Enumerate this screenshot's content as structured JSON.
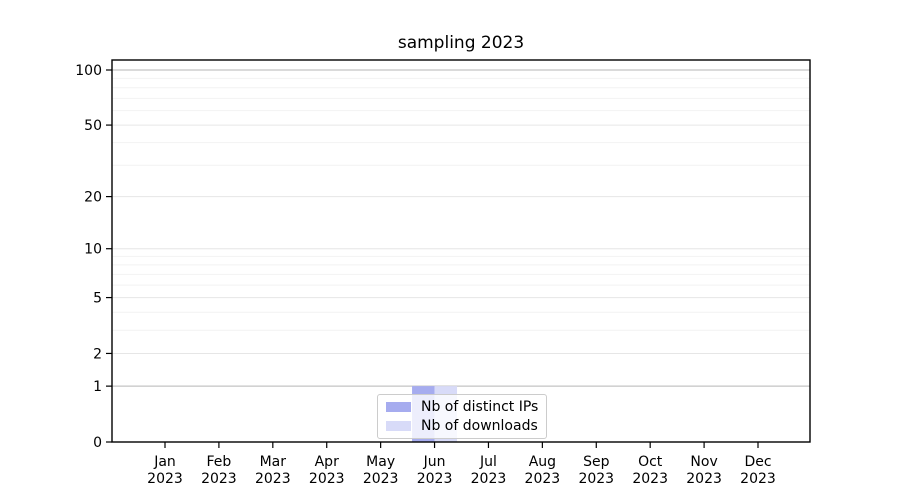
{
  "title": "sampling 2023",
  "colors": {
    "grid_minor": "#f2f2f2",
    "grid_major": "#e6e6e6",
    "grid_emphasis": "#c4c4c4",
    "spine": "#000000",
    "tick": "#000000",
    "text": "#000000",
    "legend_border": "#cccccc",
    "legend_bg": "rgba(255,255,255,0.8)"
  },
  "chart_data": {
    "type": "bar",
    "title": "sampling 2023",
    "xlabel": "",
    "ylabel": "",
    "grid": true,
    "legend_position": "lower center",
    "categories": [
      {
        "month": "Jan",
        "year": "2023"
      },
      {
        "month": "Feb",
        "year": "2023"
      },
      {
        "month": "Mar",
        "year": "2023"
      },
      {
        "month": "Apr",
        "year": "2023"
      },
      {
        "month": "May",
        "year": "2023"
      },
      {
        "month": "Jun",
        "year": "2023"
      },
      {
        "month": "Jul",
        "year": "2023"
      },
      {
        "month": "Aug",
        "year": "2023"
      },
      {
        "month": "Sep",
        "year": "2023"
      },
      {
        "month": "Oct",
        "year": "2023"
      },
      {
        "month": "Nov",
        "year": "2023"
      },
      {
        "month": "Dec",
        "year": "2023"
      }
    ],
    "series": [
      {
        "name": "Nb of distinct IPs",
        "color": "#a6acef",
        "values": [
          0,
          0,
          0,
          0,
          0,
          1,
          0,
          0,
          0,
          0,
          0,
          0
        ]
      },
      {
        "name": "Nb of downloads",
        "color": "#d8dbf8",
        "values": [
          0,
          0,
          0,
          0,
          0,
          1,
          0,
          0,
          0,
          0,
          0,
          0
        ]
      }
    ],
    "y_axis": {
      "scale": "log1p",
      "range": [
        0,
        113
      ],
      "ticks": [
        {
          "value": 100,
          "label": "100"
        },
        {
          "value": 50,
          "label": "50"
        },
        {
          "value": 20,
          "label": "20"
        },
        {
          "value": 10,
          "label": "10"
        },
        {
          "value": 5,
          "label": "5"
        },
        {
          "value": 2,
          "label": "2"
        },
        {
          "value": 1,
          "label": "1"
        },
        {
          "value": 0,
          "label": "0"
        }
      ],
      "minor_gridlines": [
        3,
        4,
        6,
        7,
        8,
        9,
        30,
        40,
        60,
        70,
        80,
        90
      ],
      "emphasized_gridlines": [
        1,
        100
      ]
    }
  }
}
